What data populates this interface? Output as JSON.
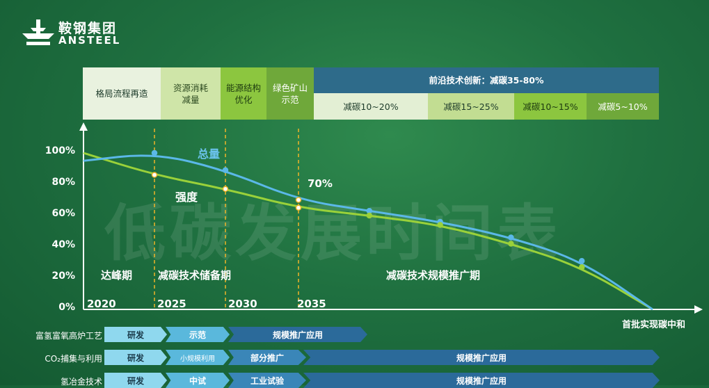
{
  "logo": {
    "cn": "鞍钢集团",
    "en": "ANSTEEL"
  },
  "watermark": "低碳发展时间表",
  "phases": [
    {
      "label": "格局流程再造"
    },
    {
      "label": "资源消耗\n减量"
    },
    {
      "label": "能源结构\n优化"
    },
    {
      "label": "绿色矿山\n示范"
    }
  ],
  "frontier": {
    "title": "前沿技术创新：减碳35-80%",
    "cells": [
      "减碳10~20%",
      "减碳15~25%",
      "减碳10~15%",
      "减碳5~10%"
    ]
  },
  "chart_data": {
    "type": "line",
    "x": [
      2020,
      2025,
      2030,
      2035
    ],
    "y_ticks": [
      "100%",
      "80%",
      "60%",
      "40%",
      "20%",
      "0%"
    ],
    "x_ticks": [
      "2020",
      "2025",
      "2030",
      "2035"
    ],
    "x_end_label": "首批实现碳中和",
    "series": [
      {
        "name": "总量",
        "points": [
          [
            2020,
            95
          ],
          [
            2025,
            100
          ],
          [
            2030,
            89
          ],
          [
            2035,
            70
          ],
          [
            2040,
            63
          ],
          [
            2045,
            56
          ],
          [
            2050,
            46
          ],
          [
            2055,
            31
          ],
          [
            2060,
            0
          ]
        ]
      },
      {
        "name": "强度",
        "points": [
          [
            2020,
            100
          ],
          [
            2025,
            86
          ],
          [
            2030,
            77
          ],
          [
            2035,
            65
          ],
          [
            2040,
            60
          ],
          [
            2045,
            54
          ],
          [
            2050,
            42
          ],
          [
            2055,
            27
          ],
          [
            2060,
            0
          ]
        ]
      }
    ],
    "annotation_70": "70%",
    "periods": [
      "达峰期",
      "减碳技术储备期",
      "减碳技术规模推广期"
    ],
    "colors": {
      "total": "#5bb8e8",
      "intensity": "#9ad13a",
      "marker": "#f0b429"
    }
  },
  "rows": [
    {
      "label": "富氢富氧高炉工艺",
      "stages": [
        "研发",
        "示范",
        "规模推广应用"
      ]
    },
    {
      "label": "CO₂捕集与利用",
      "stages": [
        "研发",
        "小规模利用",
        "部分推广",
        "规模推广应用"
      ]
    },
    {
      "label": "氢冶金技术",
      "stages": [
        "研发",
        "中试",
        "工业试验",
        "规模推广应用"
      ]
    }
  ]
}
